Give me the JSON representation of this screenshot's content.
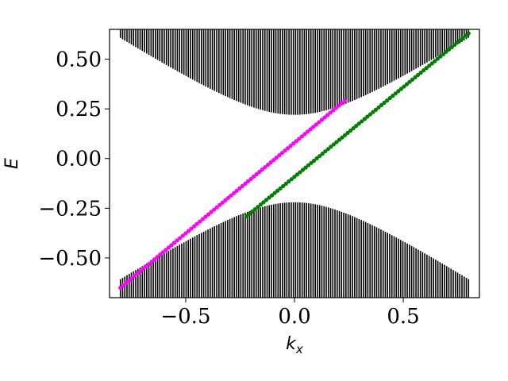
{
  "chart_data": {
    "type": "scatter",
    "title": "",
    "xlabel": "k_x",
    "ylabel": "E",
    "xlim": [
      -0.85,
      0.85
    ],
    "ylim": [
      -0.7,
      0.65
    ],
    "grid": false,
    "legend": "none",
    "xticks": [
      {
        "value": -0.5,
        "label": "−0.5"
      },
      {
        "value": 0.0,
        "label": "0.0"
      },
      {
        "value": 0.5,
        "label": "0.5"
      }
    ],
    "yticks": [
      {
        "value": 0.5,
        "label": "0.50"
      },
      {
        "value": 0.25,
        "label": "0.25"
      },
      {
        "value": 0.0,
        "label": "0.00"
      },
      {
        "value": -0.25,
        "label": "−0.25"
      },
      {
        "value": -0.5,
        "label": "−0.50"
      }
    ],
    "bulk_bands": {
      "color": "#000000",
      "kx_range": [
        -0.8,
        0.8
      ],
      "upper": {
        "gap_edge": 0.22,
        "extends_to": 0.65
      },
      "lower": {
        "gap_edge": -0.22,
        "extends_to": -0.7
      }
    },
    "series": [
      {
        "color": "#ff00ff",
        "x_start": -0.8,
        "y_start": -0.65,
        "x_end": 0.23,
        "y_end": 0.29
      },
      {
        "color": "#008000",
        "x_start": -0.22,
        "y_start": -0.29,
        "x_end": 0.8,
        "y_end": 0.63
      }
    ]
  }
}
